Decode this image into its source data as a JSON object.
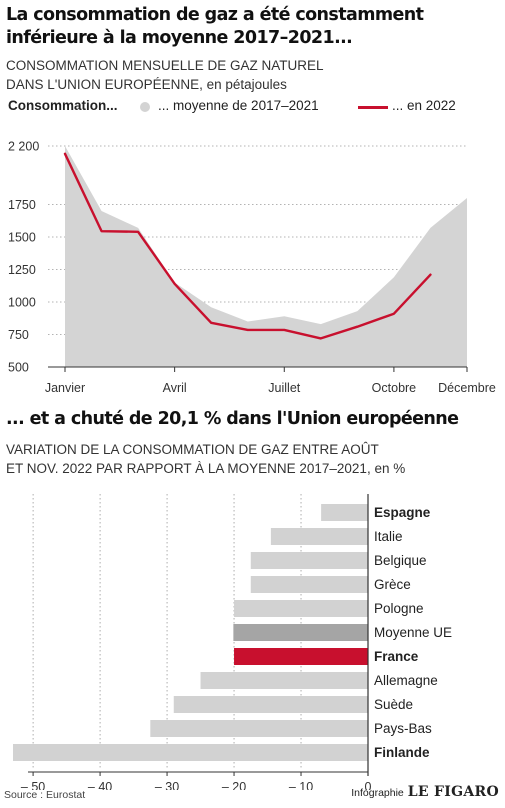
{
  "header": {
    "title": "La consommation de gaz a été constamment inférieure à la moyenne 2017–2021...",
    "subtitle_line1": "CONSOMMATION MENSUELLE DE GAZ NATUREL",
    "subtitle_line2": "DANS L'UNION EUROPÉENNE, en pétajoules"
  },
  "legend": {
    "title": "Consommation...",
    "avg_label": "... moyenne de 2017–2021",
    "y2022_label": "... en 2022"
  },
  "section2": {
    "title": "... et a chuté de 20,1 % dans l'Union européenne",
    "subtitle_line1": "VARIATION DE LA CONSOMMATION DE GAZ ENTRE AOÛT",
    "subtitle_line2": "ET NOV. 2022 PAR RAPPORT À LA MOYENNE 2017–2021, en %"
  },
  "footer": {
    "source": "Source : Eurostat",
    "brand_prefix": "Infographie",
    "brand_name": "LE FIGARO"
  },
  "colors": {
    "area": "#d4d4d4",
    "line_2022": "#c8102e",
    "bar_default": "#d2d2d2",
    "bar_eu_average": "#a5a5a5",
    "bar_france": "#c8102e"
  },
  "chart_data": [
    {
      "type": "area",
      "ylim": [
        500,
        2200
      ],
      "y_ticks": [
        {
          "value": 2200,
          "label": "2 200"
        },
        {
          "value": 1750,
          "label": "1750"
        },
        {
          "value": 1500,
          "label": "1500"
        },
        {
          "value": 1250,
          "label": "1250"
        },
        {
          "value": 1000,
          "label": "1000"
        },
        {
          "value": 750,
          "label": "750"
        },
        {
          "value": 500,
          "label": "500"
        }
      ],
      "x_tick_labels": [
        {
          "month": 1,
          "label": "Janvier"
        },
        {
          "month": 4,
          "label": "Avril"
        },
        {
          "month": 7,
          "label": "Juillet"
        },
        {
          "month": 10,
          "label": "Octobre"
        },
        {
          "month": 12,
          "label": "Décembre"
        }
      ],
      "series": [
        {
          "name": "... moyenne de 2017–2021",
          "type": "area",
          "x": [
            1,
            2,
            3,
            4,
            5,
            6,
            7,
            8,
            9,
            10,
            11,
            12
          ],
          "values": [
            2200,
            1700,
            1570,
            1150,
            960,
            850,
            890,
            830,
            930,
            1190,
            1570,
            1800
          ]
        },
        {
          "name": "... en 2022",
          "type": "line",
          "x": [
            1,
            2,
            3,
            4,
            5,
            6,
            7,
            8,
            9,
            10,
            11
          ],
          "values": [
            2140,
            1545,
            1540,
            1140,
            840,
            785,
            785,
            720,
            810,
            910,
            1210
          ]
        }
      ]
    },
    {
      "type": "bar",
      "orientation": "horizontal",
      "xlim": [
        -53,
        0
      ],
      "x_ticks": [
        {
          "value": -50,
          "label": "– 50"
        },
        {
          "value": -40,
          "label": "– 40"
        },
        {
          "value": -30,
          "label": "– 30"
        },
        {
          "value": -20,
          "label": "– 20"
        },
        {
          "value": -10,
          "label": "– 10"
        },
        {
          "value": 0,
          "label": "0"
        }
      ],
      "categories": [
        "Espagne",
        "Italie",
        "Belgique",
        "Grèce",
        "Pologne",
        "Moyenne UE",
        "France",
        "Allemagne",
        "Suède",
        "Pays-Bas",
        "Finlande"
      ],
      "values": [
        -7,
        -14.5,
        -17.5,
        -17.5,
        -20,
        -20.1,
        -20,
        -25,
        -29,
        -32.5,
        -53
      ],
      "bold": [
        true,
        false,
        false,
        false,
        false,
        false,
        true,
        false,
        false,
        false,
        true
      ],
      "highlight": [
        "none",
        "none",
        "none",
        "none",
        "none",
        "eu",
        "france",
        "none",
        "none",
        "none",
        "none"
      ]
    }
  ]
}
